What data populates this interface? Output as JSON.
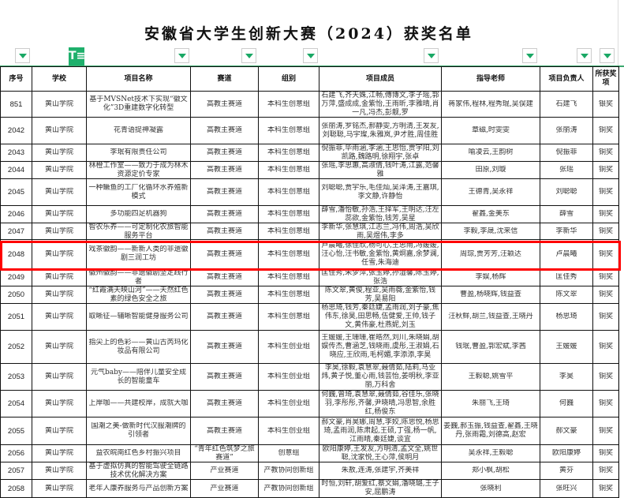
{
  "title": "安徽省大学生创新大赛（2024）获奖名单",
  "accent_color": "#1fb06c",
  "highlight_color": "#ff0000",
  "filter": {
    "active_column": "学校",
    "active_icon": "filter-active-icon",
    "dropdown_icon": "dropdown-arrow-icon"
  },
  "columns": [
    "序号",
    "学校",
    "项目名称",
    "赛道",
    "组别",
    "项目成员",
    "指导老师",
    "项目负责人",
    "所获奖项"
  ],
  "rows": [
    [
      "851",
      "黄山学院",
      "基于MVSNet技术下实现“徽文化”3D重建数字化转型",
      "高教主赛道",
      "本科生创意组",
      "石建飞,齐天姝,江畅,傅博文,李子瑶,郭万萍,盛成成,金紫怡,王雨昕,李雅晴,肖一凡,冯杰,彭靓,罗",
      "蒋家伟,程林,程秀琨,吴俣建",
      "石建飞",
      "银奖"
    ],
    [
      "2042",
      "黄山学院",
      "花青语提神凝露",
      "高教主赛道",
      "本科生创意组",
      "张丽涛,罗铭杰,郝静雯,方明清,王发友,刘聪聪,马宇璨,朱雅岚,尹才胜,周佳胜",
      "章磁,时雯雯",
      "张丽涛",
      "铜奖"
    ],
    [
      "2043",
      "黄山学院",
      "李珉有限责任公司",
      "高教主赛道",
      "本科生创意组",
      "倪振菲,毕雨涵,李涵,王思怡,贾宇阳,刘凯路,魏路明,徐翔宇,张卓",
      "喻凌云,王韵树",
      "倪振菲",
      "铜奖"
    ],
    [
      "2044",
      "黄山学院",
      "林橙工作室——致力于成为林木资源定价专家",
      "高教主赛道",
      "本科生创意组",
      "张瑶,李思蕙,高淑倩,钱叶涛,江露,范馨雅",
      "田原,刘璇",
      "张瑶",
      "铜奖"
    ],
    [
      "2045",
      "黄山学院",
      "一种鳜鱼的工厂化循环水养殖新模式",
      "高教主赛道",
      "本科生创意组",
      "刘聪聪,贾宇乐,毛佳灿,吴泽涛,王嘉琪,李文静,许静怡",
      "王德青,吴永祥",
      "刘聪聪",
      "铜奖"
    ],
    [
      "2046",
      "黄山学院",
      "多功能四足机器狗",
      "高教主赛道",
      "本科生创意组",
      "薛雪,潘怡敏,孙浩,王择军,王明达,汪左蕊欲,金紫怡,钱芳,吴星",
      "翟鑫,金美东",
      "薛雪",
      "铜奖"
    ],
    [
      "2047",
      "黄山学院",
      "智农乐养——可定制化农旅智能服务平台",
      "高教主赛道",
      "本科生创意组",
      "李新华,张慧琪,江志兰,冯伟,周浩,吴欣雨,吴煜伟,李多",
      "李毅,李晟,沈来信",
      "李新华",
      "铜奖"
    ],
    [
      "2048",
      "黄山学院",
      "戏茶徽韵——新新人类的非遗徽剧三润工坊",
      "高教主赛道",
      "本科生创意组",
      "卢晨曦,徐佳欣,杨可心,王思雨,冯媛媛,汪心怡,汪书敏,金紫怡,黄炯嘉,余梦澜,任雪,朱海迪",
      "周琮,贾芳芳,汪颖达",
      "卢晨曦",
      "铜奖"
    ],
    [
      "2049",
      "黄山学院",
      "徽州徽韵——非遗徽剧坚定践行者",
      "高教主赛道",
      "本科生创意组",
      "匡佳秀,朱梦萍,张玉婷,孙湿馨,陈玉婷,张浩",
      "李娱,杨辉",
      "匡佳秀",
      "铜奖"
    ],
    [
      "2050",
      "黄山学院",
      "“红霞满天映山河”——天然红色素的绿色安全之旅",
      "高教主赛道",
      "本科生创意组",
      "陈文翠,黄俊,程亚,吴雨薇,金紫怡,钱芳,吴易阳",
      "曹盈,杨晓辉,钱益查",
      "陈文翠",
      "铜奖"
    ],
    [
      "2051",
      "黄山学院",
      "取晰征—辅晰智能健身服务公司",
      "高教主赛道",
      "本科生创意组",
      "杨思琦,钱芳,秦廷婕,孟雨润,刘子豪,焦伟东,徐昊,田思畅,伍健爱,王帅,钱子文,黄伟豪,杜燕妮,刘玉",
      "汪秋鲜,胡兰,钱益查,王晓丹",
      "杨思琦",
      "铜奖"
    ],
    [
      "2052",
      "黄山学院",
      "指尖上的色彩——黄山古芮玛化妆品有限公司",
      "高教主赛道",
      "本科生创业组",
      "王媛媛,王珊珊,崔皓然,刘川,朱晓娟,胡娱传杰,曹涵芝,钱晓雨,虞彤,王淑娟,石晓应,王欣雨,毛柯媚,李添添,李昊",
      "钱珉,曹盈,郭宏斌,李茜",
      "王媛媛",
      "铜奖"
    ],
    [
      "2053",
      "黄山学院",
      "元气baby——陪伴儿童安全成长的智能童车",
      "高教主赛道",
      "本科生创业组",
      "李昊,徐毅,袁慧翠,聂倩茹,陆莉,马业炜,黄子悦,董心雨,钱芸怡,姜明秋,李亚丽,万科舍",
      "王毅聪,姚雪平",
      "李昊",
      "铜奖"
    ],
    [
      "2054",
      "黄山学院",
      "上岸咖——共建校岸，成就大咖",
      "高教主赛道",
      "本科生创业组",
      "何巍,曾琦,袁慧翠,聂倩茹,谷佳乐,张晓羽,李彤彤,齐馨,尹晓晴,冯思智,余胜红,杨俊东",
      "朱丽飞,王琦",
      "何巍",
      "铜奖"
    ],
    [
      "2055",
      "黄山学院",
      "国潮之美-做新时代汉服潮牌的引领者",
      "高教主赛道",
      "本科生创业组",
      "郝文豪,肖昊娜,周慧,李姣,陈思悦,杨思琦,孟雨润,陈肃起,王硕,丁强,杨一帆,江雨晴,秦廷婕,谈宜",
      "姜巍,郝玉振,钱益查,翟鑫,王晓丹,张雨霜,刘德高,赵宏",
      "郝文豪",
      "铜奖"
    ],
    [
      "2056",
      "黄山学院",
      "益农皖南红色乡村振兴项目",
      "“青年红色筑梦之旅赛道”",
      "创意组",
      "欧阳康婷,王发友,方明清,孟文全,姚世聪,沈家悦,王心萍,侯明月",
      "吴永祥,王毅聪",
      "欧阳康婷",
      "铜奖"
    ],
    [
      "2057",
      "黄山学院",
      "基于虚拟仿真的智能驾驶全链路技术优化解决方案",
      "产业赛道",
      "产教协同创新组",
      "朱敖,连涛,张建宇,齐美祥",
      "郑小枫,胡松",
      "黄芬",
      "铜奖"
    ],
    [
      "2058",
      "黄山学院",
      "老年人康养服务与产品创新方案",
      "产业赛道",
      "产教协同创新组",
      "时恒,刘轩,胡爱红,蔡文娟,潘晓璐,王子安,屈鹏涛",
      "张晓利",
      "张旺兴",
      "铜奖"
    ]
  ]
}
